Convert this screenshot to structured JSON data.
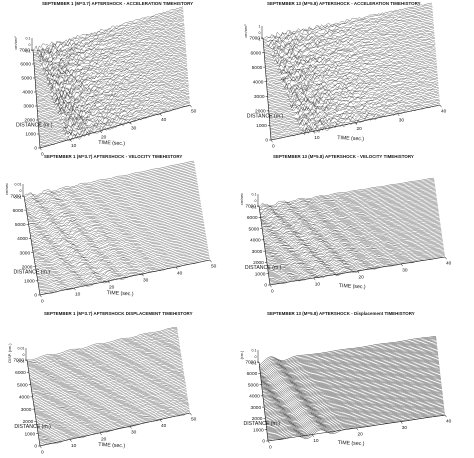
{
  "chart_data": [
    {
      "type": "line",
      "title": "SEPTEMBER 1 (M=3.7) AFTERSHOCK - ACCELERATION TIMEHISTORY",
      "ylabel": "cm/sec²",
      "yticks": [
        "0.1",
        "0",
        "-0.1"
      ],
      "distance_label": "DISTANCE (m.)",
      "distance_ticks": [
        "7000",
        "6000",
        "5000",
        "4000",
        "3000",
        "2000",
        "1000",
        "0"
      ],
      "time_label": "TIME (sec.)",
      "time_ticks": [
        "0",
        "10",
        "20",
        "30",
        "40",
        "50"
      ],
      "distance_range": [
        0,
        7000
      ],
      "time_range": [
        0,
        50
      ],
      "style": "dense-accel"
    },
    {
      "type": "line",
      "title": "SEPTEMBER 13 (M=5.8) AFTERSHOCK - ACCELERATION TIMEHISTORY",
      "ylabel": "cm/sec²",
      "yticks": [
        "1",
        "0",
        "-1"
      ],
      "distance_label": "DISTANCE (m.)",
      "distance_ticks": [
        "7000",
        "6000",
        "5000",
        "4000",
        "3000",
        "2000",
        "1000",
        "0"
      ],
      "time_label": "TIME (sec.)",
      "time_ticks": [
        "0",
        "10",
        "20",
        "30",
        "40"
      ],
      "distance_range": [
        0,
        7000
      ],
      "time_range": [
        0,
        40
      ],
      "style": "dense-accel"
    },
    {
      "type": "line",
      "title": "SEPTEMBER 1 (M=3.7) AFTERSHOCK - VELOCITY TIMEHISTORY",
      "ylabel": "cm/sec",
      "yticks": [
        "0.01",
        "0",
        "-0.01"
      ],
      "distance_label": "DISTANCE (m.)",
      "distance_ticks": [
        "7000",
        "6000",
        "5000",
        "4000",
        "3000",
        "2000",
        "1000",
        "0"
      ],
      "time_label": "TIME (sec.)",
      "time_ticks": [
        "0",
        "10",
        "20",
        "30",
        "40",
        "50"
      ],
      "distance_range": [
        0,
        7000
      ],
      "time_range": [
        0,
        50
      ],
      "style": "velocity"
    },
    {
      "type": "line",
      "title": "SEPTEMBER 13 (M=5.8) AFTERSHOCK - VELOCITY TIMEHISTORY",
      "ylabel": "cm/sec",
      "yticks": [
        "0.1",
        "0",
        "-0.1"
      ],
      "distance_label": "DISTANCE (m.)",
      "distance_ticks": [
        "7000",
        "6000",
        "5000",
        "4000",
        "3000",
        "2000",
        "1000",
        "0"
      ],
      "time_label": "TIME (sec.)",
      "time_ticks": [
        "0",
        "10",
        "20",
        "30",
        "40"
      ],
      "distance_range": [
        0,
        7000
      ],
      "time_range": [
        0,
        40
      ],
      "style": "velocity"
    },
    {
      "type": "line",
      "title": "SEPTEMBER 1 (M=3.7) AFTERSHOCK DISPLACEMENT TIMEHISTORY",
      "ylabel": "DISP. (cm.)",
      "yticks": [
        "0.01",
        "0",
        "-0.01"
      ],
      "distance_label": "DISTANCE (m.)",
      "distance_ticks": [
        "7000",
        "6000",
        "5000",
        "4000",
        "3000",
        "2000",
        "1000",
        "0"
      ],
      "time_label": "TIME (sec.)",
      "time_ticks": [
        "0",
        "10",
        "20",
        "30",
        "40",
        "50"
      ],
      "distance_range": [
        0,
        7000
      ],
      "time_range": [
        0,
        50
      ],
      "style": "displacement"
    },
    {
      "type": "line",
      "title": "SEPTEMBER 13 (M=5.8) AFTERSHOCK - Displacement TIMEHISTORY",
      "ylabel": "(cm.)",
      "yticks": [
        "0.1",
        "0",
        "-0.1"
      ],
      "distance_label": "DISTANCE (m.)",
      "distance_ticks": [
        "7000",
        "6000",
        "5000",
        "4000",
        "3000",
        "2000",
        "1000",
        "0"
      ],
      "time_label": "TIME (sec.)",
      "time_ticks": [
        "0",
        "10",
        "20",
        "30",
        "40"
      ],
      "distance_range": [
        0,
        7000
      ],
      "time_range": [
        0,
        40
      ],
      "style": "displacement-smooth"
    }
  ]
}
